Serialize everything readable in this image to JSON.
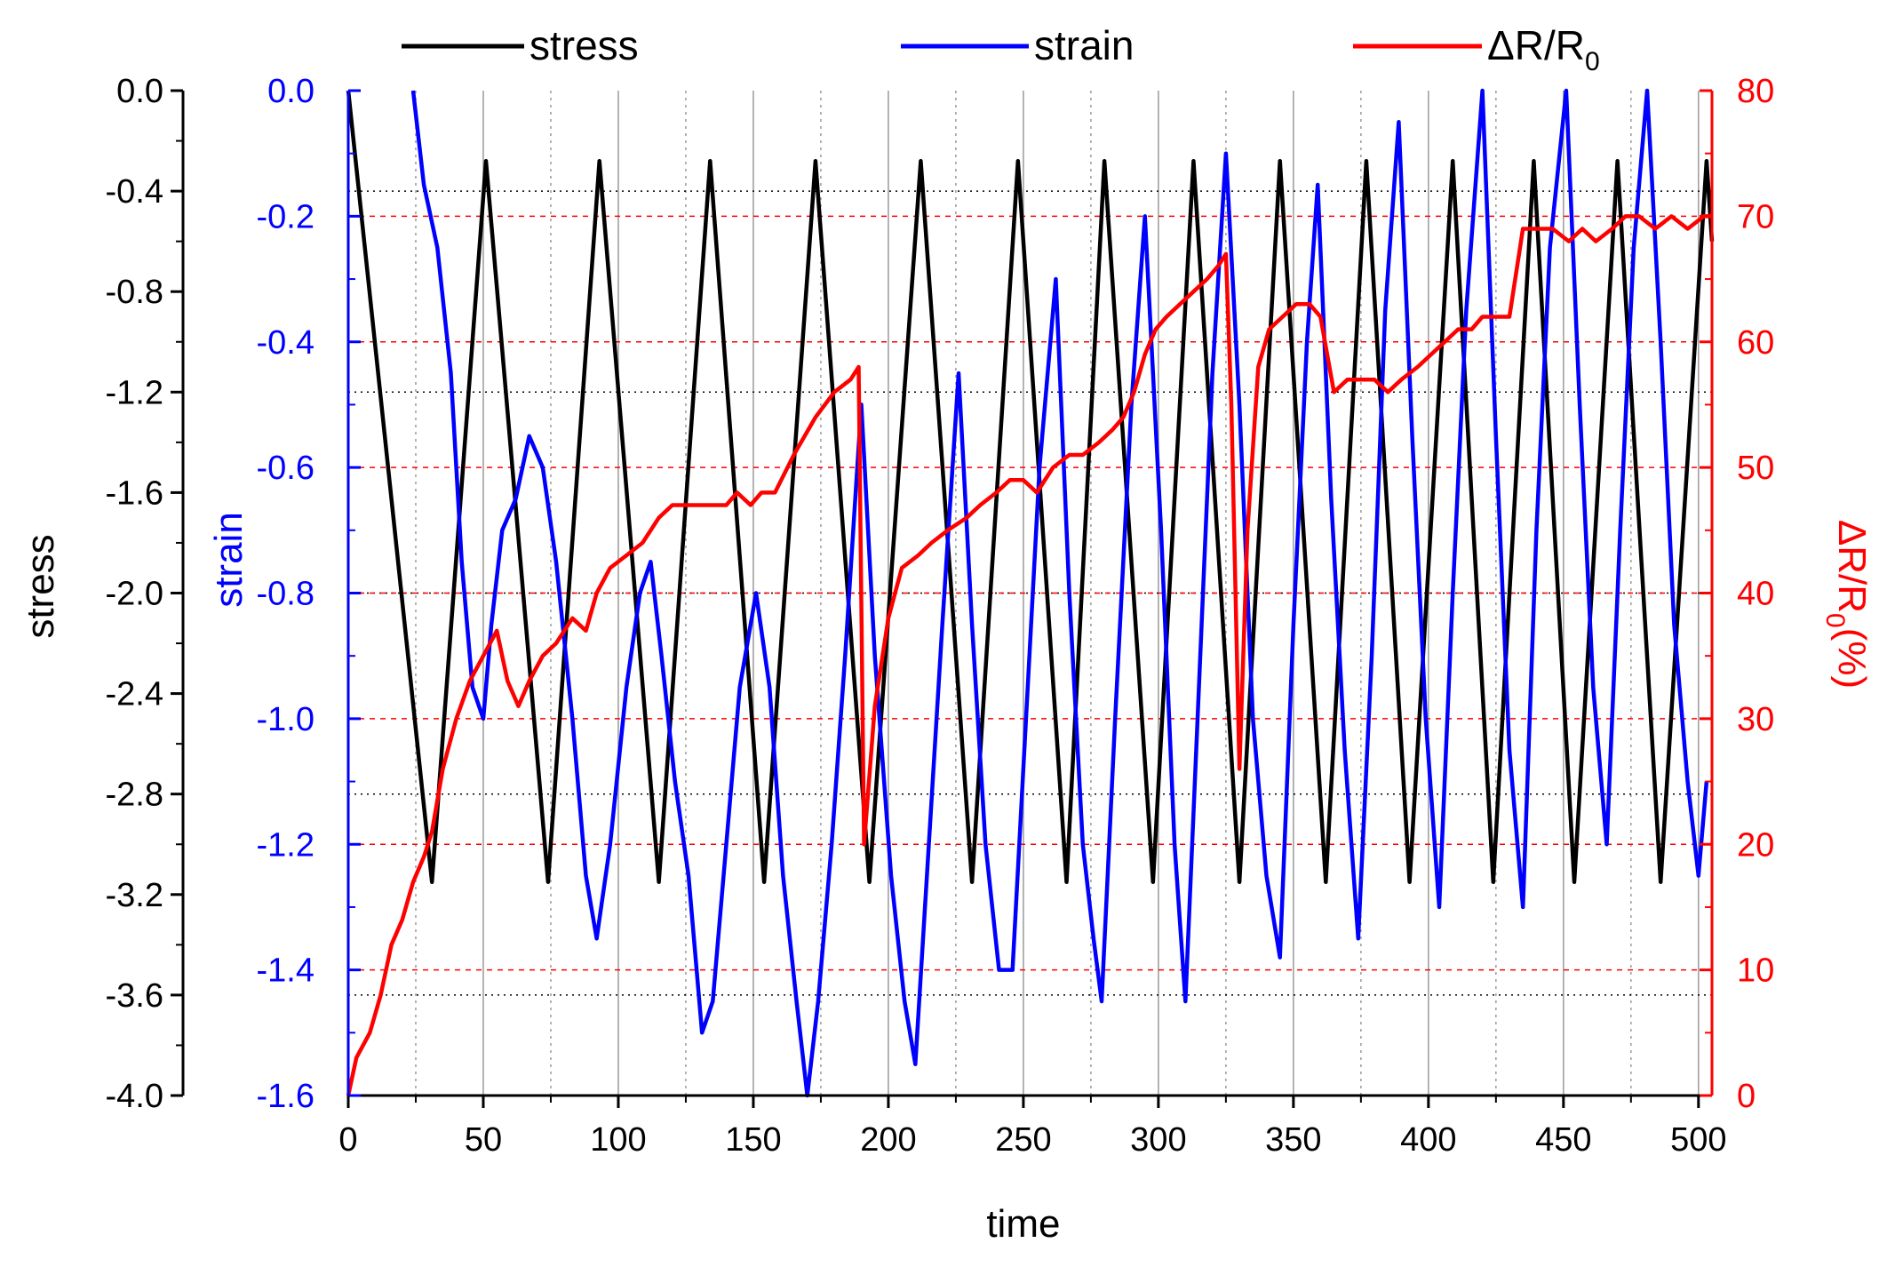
{
  "chart_data": {
    "type": "line",
    "xlabel": "time",
    "x_ticks": [
      "0",
      "50",
      "100",
      "150",
      "200",
      "250",
      "300",
      "350",
      "400",
      "450",
      "500"
    ],
    "xlim": [
      0,
      505
    ],
    "axes": {
      "stress": {
        "label": "stress",
        "ylim": [
          -4.0,
          0.0
        ],
        "ticks": [
          "0.0",
          "-0.4",
          "-0.8",
          "-1.2",
          "-1.6",
          "-2.0",
          "-2.4",
          "-2.8",
          "-3.2",
          "-3.6",
          "-4.0"
        ],
        "color": "#000000"
      },
      "strain": {
        "label": "strain",
        "ylim": [
          -1.6,
          0.0
        ],
        "ticks": [
          "0.0",
          "-0.2",
          "-0.4",
          "-0.6",
          "-0.8",
          "-1.0",
          "-1.2",
          "-1.4",
          "-1.6"
        ],
        "color": "#0000ff"
      },
      "resistance": {
        "label_main": "ΔR/R",
        "label_sub": "0",
        "label_tail": "(%)",
        "ylim": [
          0,
          80
        ],
        "ticks": [
          "0",
          "10",
          "20",
          "30",
          "40",
          "50",
          "60",
          "70",
          "80"
        ],
        "color": "#ff0000"
      }
    },
    "legend": {
      "placement": "top",
      "entries": [
        {
          "label": "stress",
          "color": "#000000"
        },
        {
          "label": "strain",
          "color": "#0000ff"
        },
        {
          "label_main": "ΔR/R",
          "label_sub": "0",
          "color": "#ff0000"
        }
      ]
    },
    "grid": true,
    "series": [
      {
        "legend": "stress",
        "axis": "stress",
        "color": "#000000",
        "description": "triangular loading cycles, peaks near -0.3, valleys near -3.15",
        "points": [
          [
            0,
            0
          ],
          [
            31,
            -3.15
          ],
          [
            51,
            -0.28
          ],
          [
            74,
            -3.15
          ],
          [
            93,
            -0.28
          ],
          [
            115,
            -3.15
          ],
          [
            134,
            -0.28
          ],
          [
            154,
            -3.15
          ],
          [
            173,
            -0.28
          ],
          [
            193,
            -3.15
          ],
          [
            212,
            -0.28
          ],
          [
            231,
            -3.15
          ],
          [
            248,
            -0.28
          ],
          [
            266,
            -3.15
          ],
          [
            280,
            -0.28
          ],
          [
            298,
            -3.15
          ],
          [
            313,
            -0.28
          ],
          [
            330,
            -3.15
          ],
          [
            345,
            -0.28
          ],
          [
            362,
            -3.15
          ],
          [
            377,
            -0.28
          ],
          [
            393,
            -3.15
          ],
          [
            409,
            -0.28
          ],
          [
            424,
            -3.15
          ],
          [
            439,
            -0.28
          ],
          [
            454,
            -3.15
          ],
          [
            470,
            -0.28
          ],
          [
            486,
            -3.15
          ],
          [
            503,
            -0.28
          ],
          [
            505,
            -0.6
          ]
        ]
      },
      {
        "legend": "strain",
        "axis": "strain",
        "color": "#0000ff",
        "points": [
          [
            24,
            0.0
          ],
          [
            28,
            -0.15
          ],
          [
            33,
            -0.25
          ],
          [
            38,
            -0.45
          ],
          [
            42,
            -0.75
          ],
          [
            46,
            -0.95
          ],
          [
            50,
            -1.0
          ],
          [
            53,
            -0.85
          ],
          [
            57,
            -0.7
          ],
          [
            62,
            -0.65
          ],
          [
            67,
            -0.55
          ],
          [
            72,
            -0.6
          ],
          [
            77,
            -0.75
          ],
          [
            83,
            -1.0
          ],
          [
            88,
            -1.25
          ],
          [
            92,
            -1.35
          ],
          [
            97,
            -1.2
          ],
          [
            103,
            -0.95
          ],
          [
            108,
            -0.8
          ],
          [
            112,
            -0.75
          ],
          [
            116,
            -0.9
          ],
          [
            121,
            -1.1
          ],
          [
            126,
            -1.25
          ],
          [
            131,
            -1.5
          ],
          [
            135,
            -1.45
          ],
          [
            140,
            -1.2
          ],
          [
            145,
            -0.95
          ],
          [
            151,
            -0.8
          ],
          [
            156,
            -0.95
          ],
          [
            161,
            -1.25
          ],
          [
            166,
            -1.45
          ],
          [
            170,
            -1.6
          ],
          [
            174,
            -1.45
          ],
          [
            179,
            -1.2
          ],
          [
            184,
            -0.9
          ],
          [
            190,
            -0.5
          ],
          [
            195,
            -0.9
          ],
          [
            201,
            -1.25
          ],
          [
            206,
            -1.45
          ],
          [
            210,
            -1.55
          ],
          [
            215,
            -1.2
          ],
          [
            220,
            -0.85
          ],
          [
            226,
            -0.45
          ],
          [
            231,
            -0.85
          ],
          [
            236,
            -1.2
          ],
          [
            241,
            -1.4
          ],
          [
            246,
            -1.4
          ],
          [
            251,
            -1.0
          ],
          [
            256,
            -0.6
          ],
          [
            262,
            -0.3
          ],
          [
            267,
            -0.8
          ],
          [
            272,
            -1.2
          ],
          [
            276,
            -1.35
          ],
          [
            279,
            -1.45
          ],
          [
            284,
            -1.0
          ],
          [
            290,
            -0.5
          ],
          [
            295,
            -0.2
          ],
          [
            301,
            -0.7
          ],
          [
            306,
            -1.2
          ],
          [
            310,
            -1.45
          ],
          [
            315,
            -0.95
          ],
          [
            320,
            -0.45
          ],
          [
            325,
            -0.1
          ],
          [
            330,
            -0.5
          ],
          [
            335,
            -1.0
          ],
          [
            340,
            -1.25
          ],
          [
            345,
            -1.38
          ],
          [
            350,
            -0.85
          ],
          [
            355,
            -0.4
          ],
          [
            359,
            -0.15
          ],
          [
            364,
            -0.65
          ],
          [
            369,
            -1.05
          ],
          [
            374,
            -1.35
          ],
          [
            379,
            -0.9
          ],
          [
            384,
            -0.35
          ],
          [
            389,
            -0.05
          ],
          [
            394,
            -0.55
          ],
          [
            399,
            -1.0
          ],
          [
            404,
            -1.3
          ],
          [
            409,
            -0.8
          ],
          [
            414,
            -0.35
          ],
          [
            420,
            -0.0
          ],
          [
            425,
            -0.55
          ],
          [
            430,
            -1.05
          ],
          [
            435,
            -1.3
          ],
          [
            440,
            -0.7
          ],
          [
            445,
            -0.25
          ],
          [
            451,
            0.0
          ],
          [
            456,
            -0.5
          ],
          [
            461,
            -0.95
          ],
          [
            466,
            -1.2
          ],
          [
            471,
            -0.7
          ],
          [
            476,
            -0.25
          ],
          [
            481,
            0.0
          ],
          [
            486,
            -0.4
          ],
          [
            491,
            -0.85
          ],
          [
            496,
            -1.1
          ],
          [
            500,
            -1.25
          ],
          [
            503,
            -1.1
          ]
        ]
      },
      {
        "legend": "ΔR/R0",
        "axis": "resistance",
        "color": "#ff0000",
        "points": [
          [
            0,
            0
          ],
          [
            3,
            3
          ],
          [
            8,
            5
          ],
          [
            12,
            8
          ],
          [
            16,
            12
          ],
          [
            20,
            14
          ],
          [
            24,
            17
          ],
          [
            28,
            19
          ],
          [
            31,
            21
          ],
          [
            35,
            26
          ],
          [
            40,
            30
          ],
          [
            45,
            33
          ],
          [
            50,
            35
          ],
          [
            55,
            37
          ],
          [
            59,
            33
          ],
          [
            63,
            31
          ],
          [
            67,
            33
          ],
          [
            72,
            35
          ],
          [
            77,
            36
          ],
          [
            83,
            38
          ],
          [
            88,
            37
          ],
          [
            92,
            40
          ],
          [
            97,
            42
          ],
          [
            103,
            43
          ],
          [
            109,
            44
          ],
          [
            115,
            46
          ],
          [
            120,
            47
          ],
          [
            126,
            47
          ],
          [
            130,
            47
          ],
          [
            134,
            47
          ],
          [
            140,
            47
          ],
          [
            144,
            48
          ],
          [
            149,
            47
          ],
          [
            153,
            48
          ],
          [
            158,
            48
          ],
          [
            165,
            51
          ],
          [
            173,
            54
          ],
          [
            180,
            56
          ],
          [
            186,
            57
          ],
          [
            189,
            58
          ],
          [
            191,
            20
          ],
          [
            195,
            31
          ],
          [
            200,
            38
          ],
          [
            205,
            42
          ],
          [
            211,
            43
          ],
          [
            216,
            44
          ],
          [
            222,
            45
          ],
          [
            229,
            46
          ],
          [
            234,
            47
          ],
          [
            240,
            48
          ],
          [
            245,
            49
          ],
          [
            250,
            49
          ],
          [
            255,
            48
          ],
          [
            261,
            50
          ],
          [
            267,
            51
          ],
          [
            272,
            51
          ],
          [
            278,
            52
          ],
          [
            283,
            53
          ],
          [
            287,
            54
          ],
          [
            291,
            56
          ],
          [
            295,
            59
          ],
          [
            299,
            61
          ],
          [
            303,
            62
          ],
          [
            308,
            63
          ],
          [
            313,
            64
          ],
          [
            318,
            65
          ],
          [
            322,
            66
          ],
          [
            325,
            67
          ],
          [
            327,
            55
          ],
          [
            330,
            26
          ],
          [
            333,
            45
          ],
          [
            337,
            58
          ],
          [
            341,
            61
          ],
          [
            346,
            62
          ],
          [
            351,
            63
          ],
          [
            356,
            63
          ],
          [
            360,
            62
          ],
          [
            365,
            56
          ],
          [
            370,
            57
          ],
          [
            375,
            57
          ],
          [
            380,
            57
          ],
          [
            385,
            56
          ],
          [
            390,
            57
          ],
          [
            396,
            58
          ],
          [
            401,
            59
          ],
          [
            406,
            60
          ],
          [
            411,
            61
          ],
          [
            416,
            61
          ],
          [
            420,
            62
          ],
          [
            425,
            62
          ],
          [
            430,
            62
          ],
          [
            435,
            69
          ],
          [
            440,
            69
          ],
          [
            446,
            69
          ],
          [
            452,
            68
          ],
          [
            457,
            69
          ],
          [
            462,
            68
          ],
          [
            468,
            69
          ],
          [
            473,
            70
          ],
          [
            478,
            70
          ],
          [
            484,
            69
          ],
          [
            490,
            70
          ],
          [
            496,
            69
          ],
          [
            502,
            70
          ],
          [
            505,
            70
          ]
        ]
      }
    ]
  }
}
